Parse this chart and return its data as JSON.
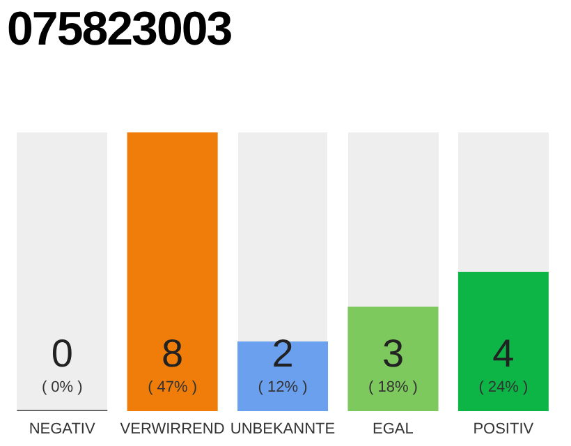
{
  "chart_data": {
    "type": "bar",
    "title": "075823003",
    "categories": [
      "NEGATIV",
      "VERWIRREND",
      "UNBEKANNTE",
      "EGAL",
      "POSITIV"
    ],
    "values": [
      0,
      8,
      2,
      3,
      4
    ],
    "colors": [
      "#666666",
      "#f07d0a",
      "#6aa0ee",
      "#7dc95e",
      "#0db546"
    ],
    "tick_labels": "x",
    "grid": false,
    "legend": false,
    "data_labels": true,
    "annotations": [
      "( 0% )",
      "( 47% )",
      "( 12% )",
      "( 18% )",
      "( 24% )"
    ]
  }
}
